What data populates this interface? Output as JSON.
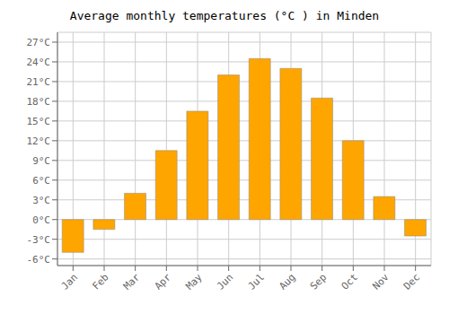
{
  "chart_data": {
    "type": "bar",
    "title": "Average monthly temperatures (°C ) in Minden",
    "categories": [
      "Jan",
      "Feb",
      "Mar",
      "Apr",
      "May",
      "Jun",
      "Jul",
      "Aug",
      "Sep",
      "Oct",
      "Nov",
      "Dec"
    ],
    "values": [
      -5,
      -1.5,
      4,
      10.5,
      16.5,
      22,
      24.5,
      23,
      18.5,
      12,
      3.5,
      -2.5
    ],
    "color": "#FFA500",
    "ylim": [
      -7,
      28.5
    ],
    "yticks": [
      {
        "value": -6,
        "label": "-6°C"
      },
      {
        "value": -3,
        "label": "-3°C"
      },
      {
        "value": 0,
        "label": "0°C"
      },
      {
        "value": 3,
        "label": "3°C"
      },
      {
        "value": 6,
        "label": "6°C"
      },
      {
        "value": 9,
        "label": "9°C"
      },
      {
        "value": 12,
        "label": "12°C"
      },
      {
        "value": 15,
        "label": "15°C"
      },
      {
        "value": 18,
        "label": "18°C"
      },
      {
        "value": 21,
        "label": "21°C"
      },
      {
        "value": 24,
        "label": "24°C"
      },
      {
        "value": 27,
        "label": "27°C"
      }
    ],
    "grid": true
  }
}
